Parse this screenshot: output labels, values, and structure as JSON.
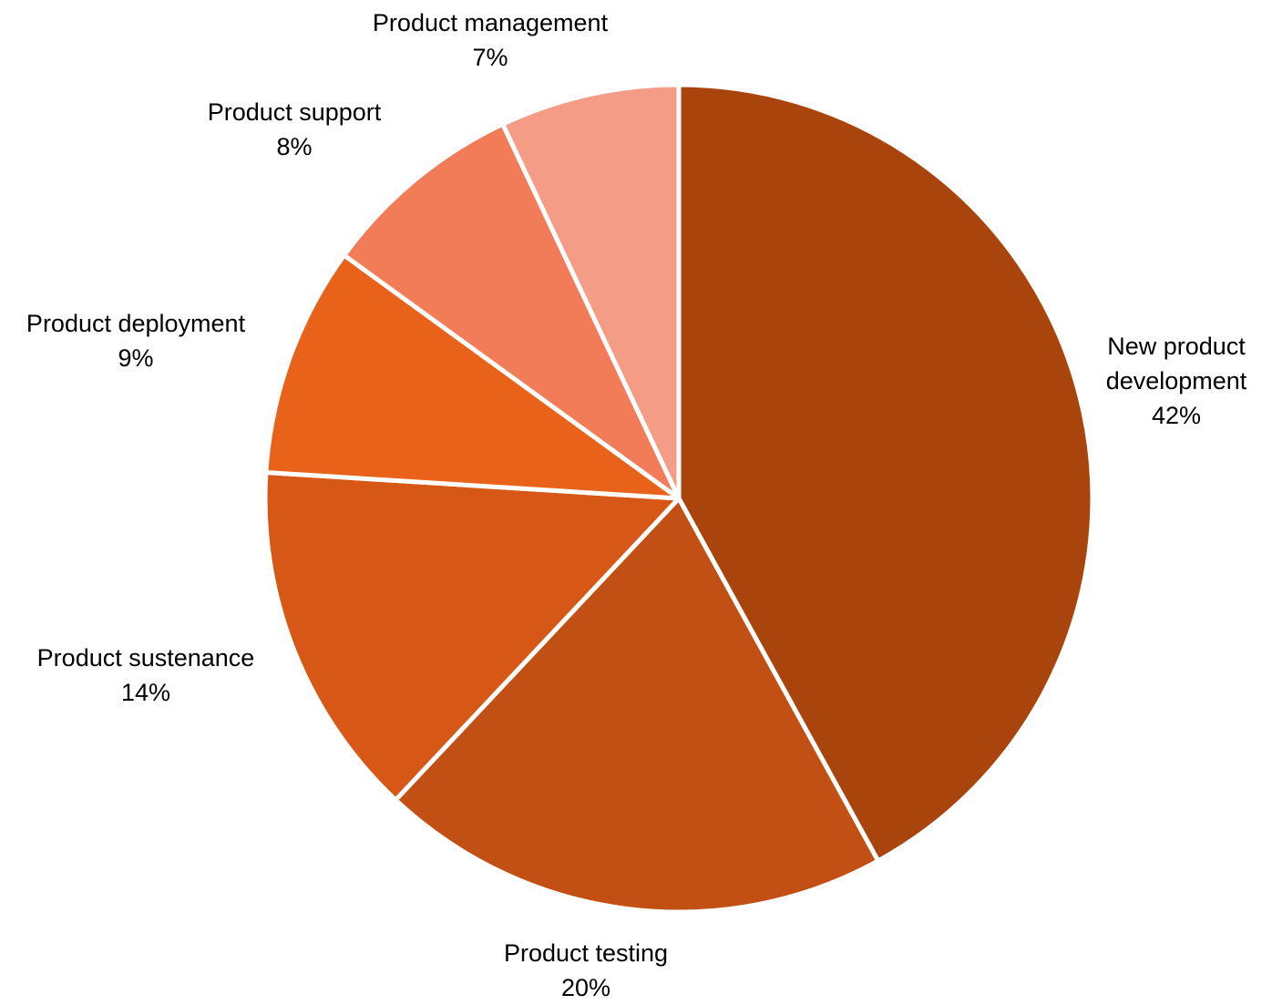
{
  "chart_data": {
    "type": "pie",
    "title": "",
    "slices": [
      {
        "label": "New product development",
        "label_lines": [
          "New product",
          "development"
        ],
        "value": 42,
        "value_label": "42%",
        "color": "#A8440C"
      },
      {
        "label": "Product testing",
        "label_lines": [
          "Product testing"
        ],
        "value": 20,
        "value_label": "20%",
        "color": "#C24F14"
      },
      {
        "label": "Product sustenance",
        "label_lines": [
          "Product sustenance"
        ],
        "value": 14,
        "value_label": "14%",
        "color": "#D75816"
      },
      {
        "label": "Product deployment",
        "label_lines": [
          "Product deployment"
        ],
        "value": 9,
        "value_label": "9%",
        "color": "#E86219"
      },
      {
        "label": "Product support",
        "label_lines": [
          "Product support"
        ],
        "value": 8,
        "value_label": "8%",
        "color": "#F27C58"
      },
      {
        "label": "Product management",
        "label_lines": [
          "Product management"
        ],
        "value": 7,
        "value_label": "7%",
        "color": "#F59C86"
      }
    ],
    "start_angle": "12 o'clock",
    "direction": "clockwise",
    "separator_color": "#FFFFFF",
    "legend": "none",
    "data_labels": "outside, category name and percentage"
  }
}
